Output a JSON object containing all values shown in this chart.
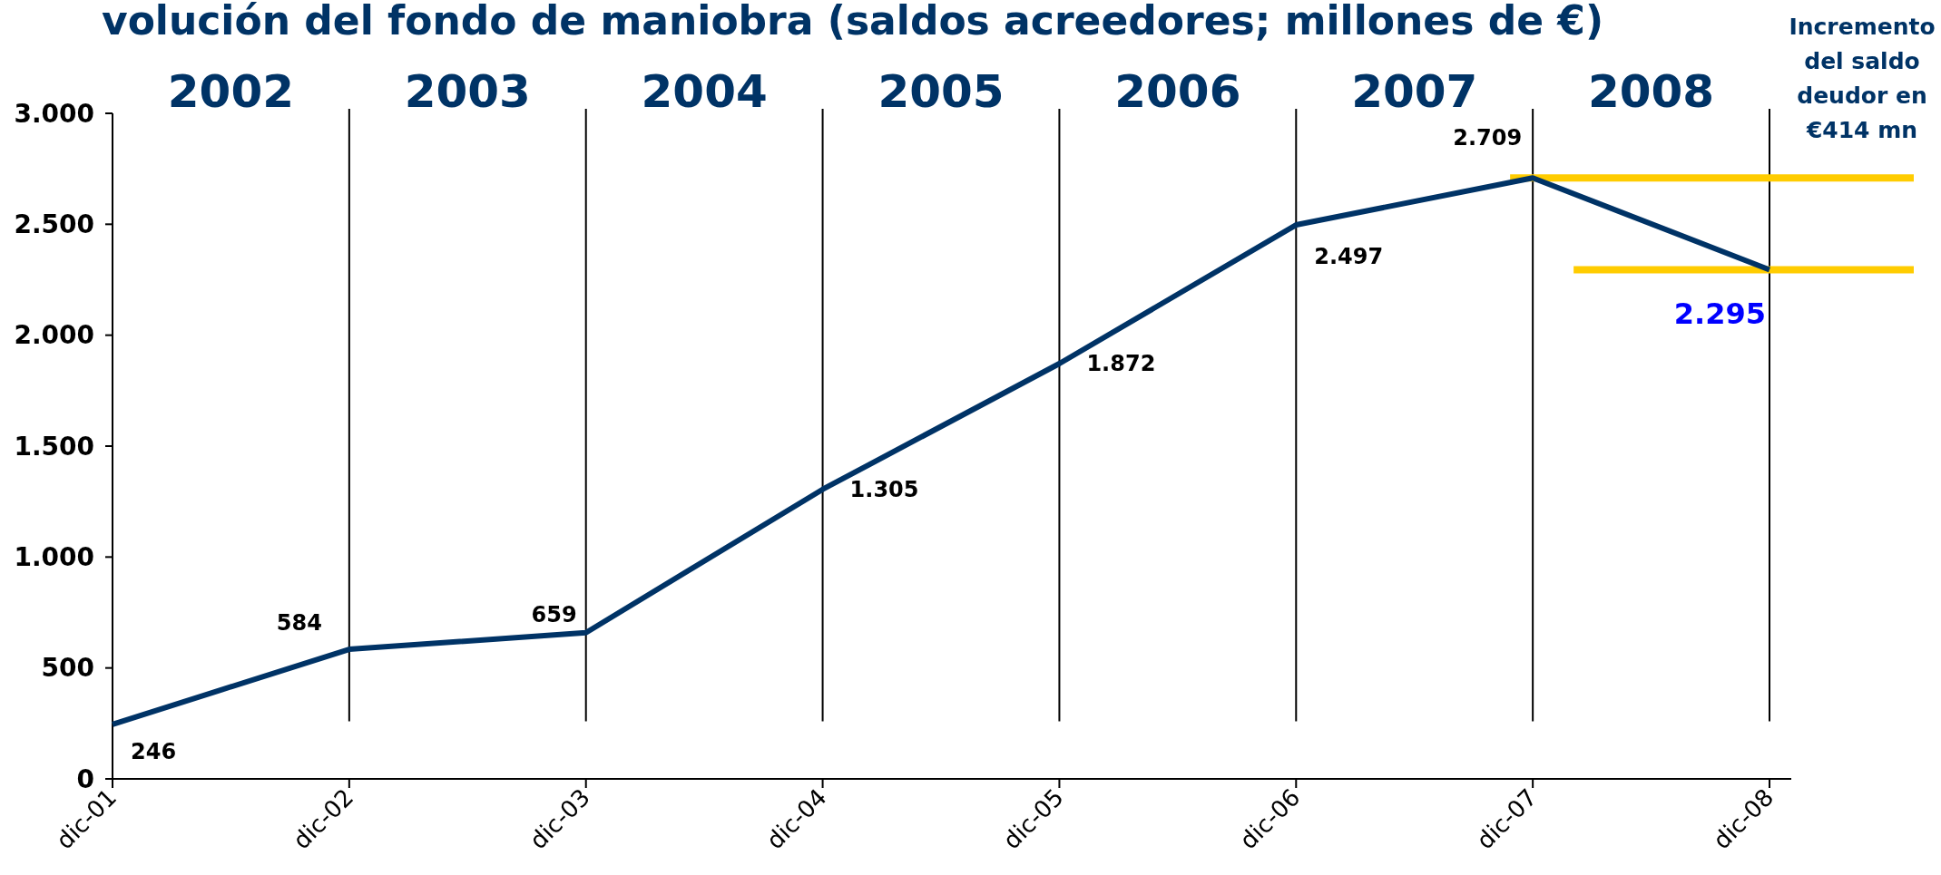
{
  "chart_data": {
    "type": "line",
    "title": "volución del fondo de maniobra (saldos acreedores; millones de €)",
    "categories": [
      "dic-01",
      "dic-02",
      "dic-03",
      "dic-04",
      "dic-05",
      "dic-06",
      "dic-07",
      "dic-08"
    ],
    "series": [
      {
        "color": "#003366",
        "values": [
          246,
          584,
          659,
          1305,
          1872,
          2497,
          2709,
          2295
        ]
      }
    ],
    "value_labels": [
      "246",
      "584",
      "659",
      "1.305",
      "1.872",
      "2.497",
      "2.709",
      "2.295"
    ],
    "ylim": [
      0,
      3000
    ],
    "yticks": [
      {
        "value": 0,
        "label": "0"
      },
      {
        "value": 500,
        "label": "500"
      },
      {
        "value": 1000,
        "label": "1.000"
      },
      {
        "value": 1500,
        "label": "1.500"
      },
      {
        "value": 2000,
        "label": "2.000"
      },
      {
        "value": 2500,
        "label": "2.500"
      },
      {
        "value": 3000,
        "label": "3.000"
      }
    ],
    "ref_lines": [
      {
        "axis": "x",
        "value": "dic-02",
        "color": "#000000"
      },
      {
        "axis": "x",
        "value": "dic-03",
        "color": "#000000"
      },
      {
        "axis": "x",
        "value": "dic-04",
        "color": "#000000"
      },
      {
        "axis": "x",
        "value": "dic-05",
        "color": "#000000"
      },
      {
        "axis": "x",
        "value": "dic-06",
        "color": "#000000"
      },
      {
        "axis": "x",
        "value": "dic-07",
        "color": "#000000"
      },
      {
        "axis": "x",
        "value": "dic-08",
        "color": "#000000"
      },
      {
        "axis": "y",
        "value": 2709,
        "color": "#ffcc00"
      },
      {
        "axis": "y",
        "value": 2295,
        "color": "#ffcc00"
      }
    ],
    "annotations": [
      "2002",
      "2003",
      "2004",
      "2005",
      "2006",
      "2007",
      "2008",
      "Incremento del saldo deudor en €414 mn"
    ],
    "grid": false,
    "marker": "none",
    "line_style": "solid"
  }
}
